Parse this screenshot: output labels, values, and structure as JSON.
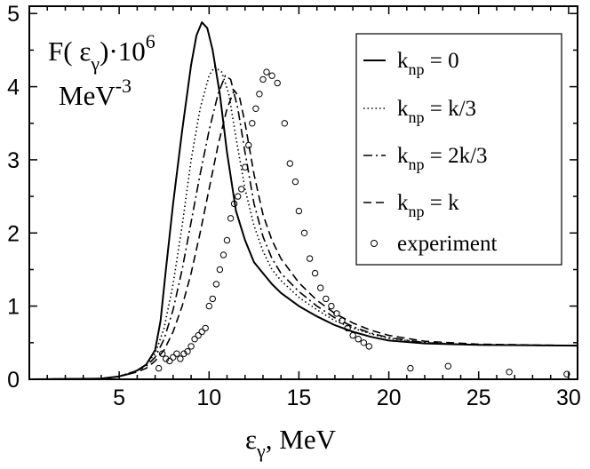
{
  "chart_data": {
    "type": "line",
    "title": "",
    "ylabel": {
      "main": "F( ε",
      "main_sub": "γ",
      "main_tail": ")·10",
      "main_sup": "6",
      "unit": "MeV",
      "unit_sup": "-3"
    },
    "xlabel": {
      "main": "ε",
      "sub": "γ",
      "tail": ", MeV"
    },
    "xlim": [
      0,
      30.5
    ],
    "ylim": [
      0,
      5.1
    ],
    "x_ticks": [
      5,
      10,
      15,
      20,
      25,
      30
    ],
    "y_ticks": [
      0,
      1,
      2,
      3,
      4,
      5
    ],
    "grid": false,
    "legend_position": "top-right",
    "series": [
      {
        "name": "k_np = 0",
        "legend": {
          "pre": "k",
          "sub": "np",
          "post": " = 0"
        },
        "style": "solid",
        "points": [
          [
            0,
            0
          ],
          [
            4,
            0.01
          ],
          [
            5,
            0.04
          ],
          [
            5.5,
            0.07
          ],
          [
            6,
            0.12
          ],
          [
            6.5,
            0.2
          ],
          [
            7,
            0.4
          ],
          [
            7.3,
            0.8
          ],
          [
            7.6,
            1.5
          ],
          [
            8,
            2.4
          ],
          [
            8.5,
            3.4
          ],
          [
            9,
            4.3
          ],
          [
            9.3,
            4.7
          ],
          [
            9.6,
            4.88
          ],
          [
            9.9,
            4.8
          ],
          [
            10.2,
            4.5
          ],
          [
            10.6,
            3.9
          ],
          [
            11,
            3.1
          ],
          [
            11.5,
            2.3
          ],
          [
            12,
            1.9
          ],
          [
            12.5,
            1.6
          ],
          [
            13,
            1.45
          ],
          [
            13.5,
            1.3
          ],
          [
            14,
            1.18
          ],
          [
            15,
            1.0
          ],
          [
            16,
            0.86
          ],
          [
            17,
            0.74
          ],
          [
            18,
            0.65
          ],
          [
            19,
            0.58
          ],
          [
            20,
            0.53
          ],
          [
            22,
            0.49
          ],
          [
            25,
            0.47
          ],
          [
            30.5,
            0.46
          ]
        ]
      },
      {
        "name": "k_np = k/3",
        "legend": {
          "pre": "k",
          "sub": "np",
          "post": " = k/3"
        },
        "style": "dotted",
        "points": [
          [
            0,
            0
          ],
          [
            4,
            0.01
          ],
          [
            5,
            0.04
          ],
          [
            6,
            0.12
          ],
          [
            6.5,
            0.2
          ],
          [
            7,
            0.35
          ],
          [
            7.5,
            0.7
          ],
          [
            8,
            1.3
          ],
          [
            8.5,
            2.1
          ],
          [
            9,
            3.0
          ],
          [
            9.5,
            3.7
          ],
          [
            10,
            4.15
          ],
          [
            10.3,
            4.27
          ],
          [
            10.7,
            4.2
          ],
          [
            11.1,
            3.9
          ],
          [
            11.5,
            3.3
          ],
          [
            12,
            2.6
          ],
          [
            12.5,
            2.1
          ],
          [
            13,
            1.75
          ],
          [
            13.5,
            1.5
          ],
          [
            14,
            1.35
          ],
          [
            15,
            1.12
          ],
          [
            16,
            0.95
          ],
          [
            17,
            0.8
          ],
          [
            18,
            0.7
          ],
          [
            19,
            0.62
          ],
          [
            20,
            0.56
          ],
          [
            22,
            0.5
          ],
          [
            25,
            0.47
          ],
          [
            30.5,
            0.46
          ]
        ]
      },
      {
        "name": "k_np = 2k/3",
        "legend": {
          "pre": "k",
          "sub": "np",
          "post": " = 2k/3"
        },
        "style": "dashdot",
        "points": [
          [
            0,
            0
          ],
          [
            4,
            0.01
          ],
          [
            5,
            0.04
          ],
          [
            6,
            0.12
          ],
          [
            6.5,
            0.18
          ],
          [
            7,
            0.3
          ],
          [
            7.5,
            0.55
          ],
          [
            8,
            0.95
          ],
          [
            8.5,
            1.5
          ],
          [
            9,
            2.15
          ],
          [
            9.5,
            2.8
          ],
          [
            10,
            3.4
          ],
          [
            10.5,
            3.9
          ],
          [
            10.9,
            4.15
          ],
          [
            11.2,
            4.1
          ],
          [
            11.6,
            3.7
          ],
          [
            12,
            3.1
          ],
          [
            12.5,
            2.4
          ],
          [
            13,
            1.95
          ],
          [
            13.5,
            1.65
          ],
          [
            14,
            1.45
          ],
          [
            15,
            1.2
          ],
          [
            16,
            1.0
          ],
          [
            17,
            0.84
          ],
          [
            18,
            0.72
          ],
          [
            19,
            0.63
          ],
          [
            20,
            0.57
          ],
          [
            22,
            0.5
          ],
          [
            25,
            0.47
          ],
          [
            30.5,
            0.46
          ]
        ]
      },
      {
        "name": "k_np = k",
        "legend": {
          "pre": "k",
          "sub": "np",
          "post": " = k"
        },
        "style": "dashed",
        "points": [
          [
            0,
            0
          ],
          [
            4,
            0.01
          ],
          [
            5,
            0.04
          ],
          [
            6,
            0.1
          ],
          [
            6.5,
            0.15
          ],
          [
            7,
            0.25
          ],
          [
            7.5,
            0.4
          ],
          [
            8,
            0.65
          ],
          [
            8.5,
            1.0
          ],
          [
            9,
            1.45
          ],
          [
            9.5,
            2.0
          ],
          [
            10,
            2.6
          ],
          [
            10.5,
            3.2
          ],
          [
            11,
            3.7
          ],
          [
            11.4,
            3.95
          ],
          [
            11.7,
            3.85
          ],
          [
            12,
            3.5
          ],
          [
            12.5,
            2.8
          ],
          [
            13,
            2.25
          ],
          [
            13.5,
            1.9
          ],
          [
            14,
            1.65
          ],
          [
            15,
            1.32
          ],
          [
            16,
            1.08
          ],
          [
            17,
            0.9
          ],
          [
            18,
            0.77
          ],
          [
            19,
            0.67
          ],
          [
            20,
            0.6
          ],
          [
            22,
            0.52
          ],
          [
            25,
            0.48
          ],
          [
            30.5,
            0.46
          ]
        ]
      },
      {
        "name": "experiment",
        "legend": {
          "pre": "",
          "sub": "",
          "post": "experiment"
        },
        "style": "circles",
        "points": [
          [
            7.2,
            0.15
          ],
          [
            7.4,
            0.35
          ],
          [
            7.6,
            0.28
          ],
          [
            7.8,
            0.25
          ],
          [
            8.0,
            0.3
          ],
          [
            8.2,
            0.35
          ],
          [
            8.4,
            0.28
          ],
          [
            8.6,
            0.35
          ],
          [
            8.8,
            0.38
          ],
          [
            9.0,
            0.45
          ],
          [
            9.2,
            0.55
          ],
          [
            9.4,
            0.6
          ],
          [
            9.6,
            0.65
          ],
          [
            9.8,
            0.7
          ],
          [
            10.0,
            1.0
          ],
          [
            10.2,
            1.1
          ],
          [
            10.4,
            1.3
          ],
          [
            10.6,
            1.5
          ],
          [
            10.8,
            1.7
          ],
          [
            11.0,
            1.9
          ],
          [
            11.2,
            2.2
          ],
          [
            11.4,
            2.4
          ],
          [
            11.6,
            2.5
          ],
          [
            11.8,
            2.6
          ],
          [
            12.0,
            2.9
          ],
          [
            12.2,
            3.2
          ],
          [
            12.4,
            3.5
          ],
          [
            12.6,
            3.7
          ],
          [
            12.8,
            3.9
          ],
          [
            13.0,
            4.1
          ],
          [
            13.2,
            4.2
          ],
          [
            13.5,
            4.15
          ],
          [
            13.8,
            4.05
          ],
          [
            14.2,
            3.5
          ],
          [
            14.5,
            2.95
          ],
          [
            14.8,
            2.7
          ],
          [
            15.0,
            2.3
          ],
          [
            15.3,
            2.0
          ],
          [
            15.6,
            1.65
          ],
          [
            15.9,
            1.45
          ],
          [
            16.2,
            1.25
          ],
          [
            16.5,
            1.1
          ],
          [
            16.8,
            1.0
          ],
          [
            17.1,
            0.9
          ],
          [
            17.4,
            0.8
          ],
          [
            17.7,
            0.7
          ],
          [
            18.0,
            0.6
          ],
          [
            18.3,
            0.55
          ],
          [
            18.6,
            0.5
          ],
          [
            18.9,
            0.45
          ],
          [
            21.2,
            0.15
          ],
          [
            23.3,
            0.18
          ],
          [
            26.7,
            0.1
          ],
          [
            29.9,
            0.07
          ]
        ]
      }
    ]
  }
}
